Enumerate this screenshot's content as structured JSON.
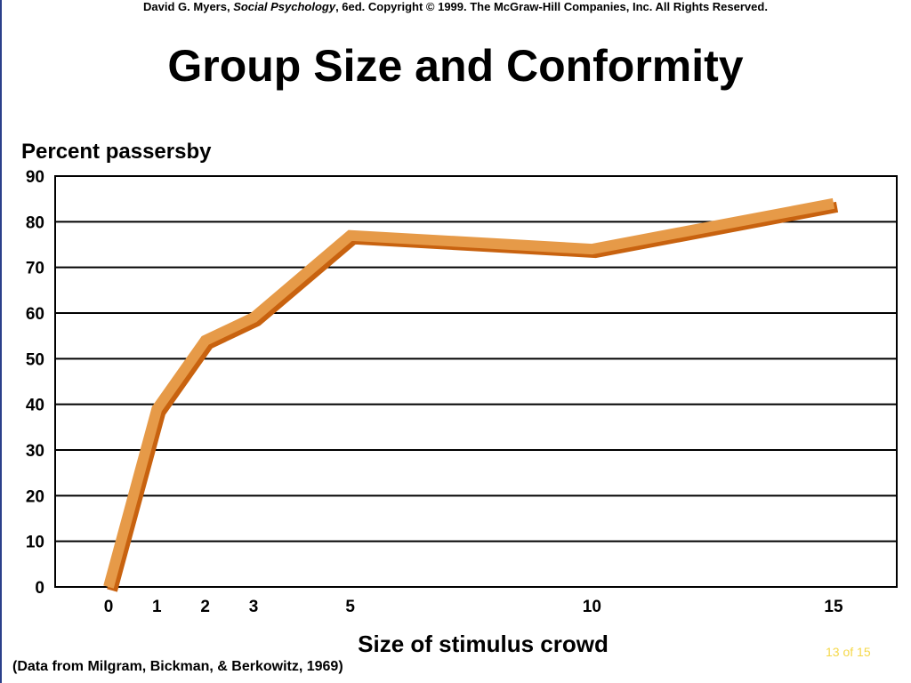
{
  "header": {
    "copyright_prefix": "David G. Myers, ",
    "copyright_book": "Social Psychology",
    "copyright_suffix": ", 6ed. Copyright © 1999. The McGraw-Hill Companies, Inc. All Rights Reserved."
  },
  "title": "Group Size and Conformity",
  "footer": {
    "source": "(Data from Milgram, Bickman, & Berkowitz, 1969)",
    "slide_counter": "13 of 15"
  },
  "colors": {
    "line_main": "#e69a48",
    "line_shadow": "#c8620f",
    "grid": "#000000",
    "counter": "#f5d848"
  },
  "chart_data": {
    "type": "line",
    "ylabel": "Percent passersby",
    "xlabel": "Size of stimulus crowd",
    "ylim": [
      0,
      90
    ],
    "yticks": [
      0,
      10,
      20,
      30,
      40,
      50,
      60,
      70,
      80,
      90
    ],
    "xticks": [
      0,
      1,
      2,
      3,
      5,
      10,
      15
    ],
    "grid": true,
    "x": [
      0,
      1,
      2,
      3,
      5,
      10,
      15
    ],
    "values": [
      0,
      39,
      54,
      59,
      77,
      74,
      84
    ]
  }
}
